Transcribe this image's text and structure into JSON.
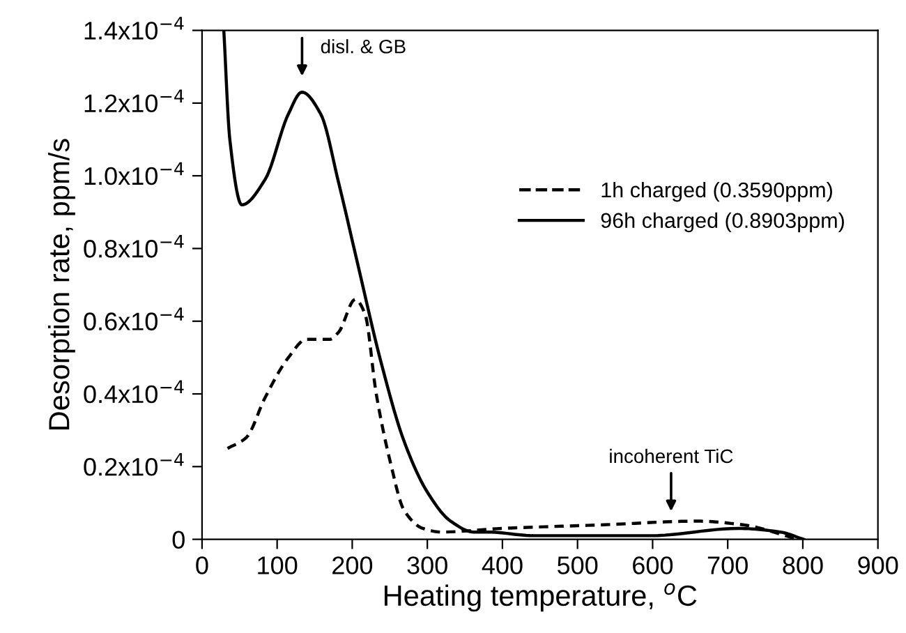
{
  "chart_data": {
    "type": "line",
    "xlabel": "Heating temperature, $^{o}$C",
    "ylabel": "Desorption rate, ppm/s",
    "xlim": [
      0,
      900
    ],
    "xticks": [
      0,
      100,
      200,
      300,
      400,
      500,
      600,
      700,
      800,
      900
    ],
    "ylim": [
      0,
      0.00014
    ],
    "yticks": [
      {
        "value": 0,
        "label": "0"
      },
      {
        "value": 2e-05,
        "label": "0.2x10$^{−4}$"
      },
      {
        "value": 4e-05,
        "label": "0.4x10$^{−4}$"
      },
      {
        "value": 6e-05,
        "label": "0.6x10$^{−4}$"
      },
      {
        "value": 8e-05,
        "label": "0.8x10$^{−4}$"
      },
      {
        "value": 0.0001,
        "label": "1.0x10$^{−4}$"
      },
      {
        "value": 0.00012,
        "label": "1.2x10$^{−4}$"
      },
      {
        "value": 0.00014,
        "label": "1.4x10$^{−4}$"
      }
    ],
    "grid": false,
    "legend": "top right",
    "marker": "none",
    "series": [
      {
        "name": "1h charged (0.3590ppm)",
        "color": "#000000",
        "line_style": "dashed",
        "x": [
          34,
          59,
          84,
          115,
          139,
          170,
          182,
          204,
          217,
          232,
          251,
          269,
          294,
          319,
          399,
          535,
          659,
          720,
          794
        ],
        "values": [
          2.5e-05,
          2.8e-05,
          3.9e-05,
          5e-05,
          5.5e-05,
          5.5e-05,
          5.7e-05,
          6.6e-05,
          6.2e-05,
          4e-05,
          2.1e-05,
          8e-06,
          3e-06,
          2e-06,
          3e-06,
          4e-06,
          5e-06,
          4e-06,
          0
        ]
      },
      {
        "name": "96h charged (0.8903ppm)",
        "color": "#000000",
        "line_style": "solid",
        "x": [
          29,
          37,
          53,
          84,
          115,
          133,
          158,
          182,
          207,
          238,
          269,
          300,
          331,
          362,
          380,
          442,
          597,
          714,
          770,
          801
        ],
        "values": [
          0.00014,
          0.00011,
          9.2e-05,
          9.9e-05,
          0.000117,
          0.000123,
          0.000117,
          9.8e-05,
          7.6e-05,
          4.9e-05,
          2.7e-05,
          1.3e-05,
          5e-06,
          2e-06,
          2e-06,
          1e-06,
          1e-06,
          3e-06,
          2e-06,
          0
        ]
      }
    ],
    "annotations": [
      "disl. & GB",
      "incoherent TiC"
    ]
  }
}
